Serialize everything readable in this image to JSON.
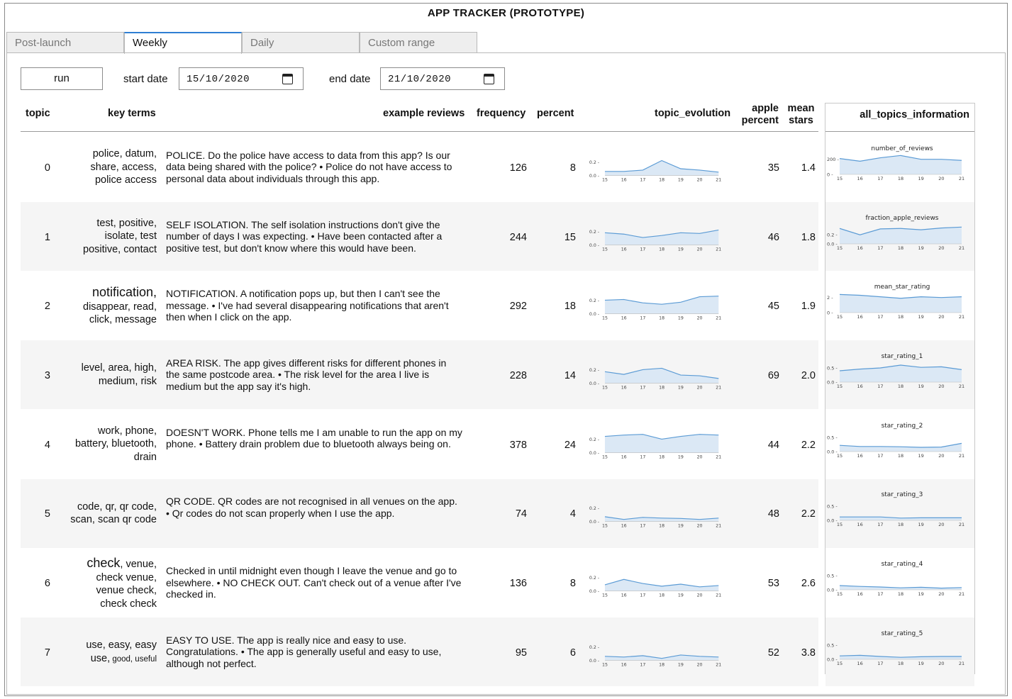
{
  "app": {
    "title": "APP TRACKER (PROTOTYPE)"
  },
  "tabs": [
    "Post-launch",
    "Weekly",
    "Daily",
    "Custom range"
  ],
  "active_tab": "Weekly",
  "controls": {
    "run_label": "run",
    "start_label": "start date",
    "start_value": "15/10/2020",
    "end_label": "end date",
    "end_value": "21/10/2020"
  },
  "headers": {
    "topic": "topic",
    "key_terms": "key terms",
    "example_reviews": "example reviews",
    "frequency": "frequency",
    "percent": "percent",
    "topic_evolution": "topic_evolution",
    "apple_percent_1": "apple",
    "apple_percent_2": "percent",
    "mean_stars_1": "mean",
    "mean_stars_2": "stars",
    "all_topics": "all_topics_information"
  },
  "x_ticks": [
    "15",
    "16",
    "17",
    "18",
    "19",
    "20",
    "21"
  ],
  "colors": {
    "line": "#5b9bd5",
    "fill": "#dbe8f5",
    "active_tab": "#2f7fd3"
  },
  "rows": [
    {
      "topic": "0",
      "terms": [
        {
          "t": "police, datum,"
        },
        {
          "t": "share, access,"
        },
        {
          "t": "police access"
        }
      ],
      "review": "POLICE. Do the police have access to data from this app? Is our data being shared with the police? • Police do not have access to personal data about individuals through this app.",
      "frequency": "126",
      "percent": "8",
      "apple_percent": "35",
      "mean_stars": "1.4",
      "evolution": {
        "ymax": 0.3,
        "yticks": [
          "0.2",
          "0.0"
        ],
        "values": [
          0.06,
          0.06,
          0.08,
          0.22,
          0.1,
          0.08,
          0.05
        ]
      }
    },
    {
      "topic": "1",
      "terms": [
        {
          "t": "test, positive,"
        },
        {
          "t": "isolate, test"
        },
        {
          "t": "positive, contact"
        }
      ],
      "review": "SELF ISOLATION. The self isolation instructions don't give the number of days I was expecting. • Have been contacted after a positive test, but don't know where this would have been.",
      "frequency": "244",
      "percent": "15",
      "apple_percent": "46",
      "mean_stars": "1.8",
      "evolution": {
        "ymax": 0.3,
        "yticks": [
          "0.2",
          "0.0"
        ],
        "values": [
          0.18,
          0.16,
          0.11,
          0.14,
          0.18,
          0.17,
          0.22
        ]
      }
    },
    {
      "topic": "2",
      "terms": [
        {
          "t": "notification,",
          "size": "big"
        },
        {
          "t": "disappear, read,"
        },
        {
          "t": "click, message"
        }
      ],
      "review": "NOTIFICATION. A notification pops up, but then I can't see the message. • I've had several disappearing notifications that aren't then when I click on the app.",
      "frequency": "292",
      "percent": "18",
      "apple_percent": "45",
      "mean_stars": "1.9",
      "evolution": {
        "ymax": 0.3,
        "yticks": [
          "0.2",
          "0.0"
        ],
        "values": [
          0.2,
          0.21,
          0.16,
          0.14,
          0.17,
          0.25,
          0.26
        ]
      }
    },
    {
      "topic": "3",
      "terms": [
        {
          "t": "level, area, high,"
        },
        {
          "t": "medium, risk"
        }
      ],
      "review": "AREA RISK. The app gives different risks for different phones in the same postcode area. • The risk level for the area I live is medium but the app say it's high.",
      "frequency": "228",
      "percent": "14",
      "apple_percent": "69",
      "mean_stars": "2.0",
      "evolution": {
        "ymax": 0.3,
        "yticks": [
          "0.2",
          "0.0"
        ],
        "values": [
          0.17,
          0.13,
          0.2,
          0.22,
          0.12,
          0.11,
          0.07
        ]
      }
    },
    {
      "topic": "4",
      "terms": [
        {
          "t": "work, phone,"
        },
        {
          "t": "battery, bluetooth,"
        },
        {
          "t": "drain"
        }
      ],
      "review": "DOESN'T WORK. Phone tells me I am unable to run the app on my phone. • Battery drain problem due to bluetooth always being on.",
      "frequency": "378",
      "percent": "24",
      "apple_percent": "44",
      "mean_stars": "2.2",
      "evolution": {
        "ymax": 0.3,
        "yticks": [
          "0.2",
          "0.0"
        ],
        "values": [
          0.24,
          0.26,
          0.27,
          0.2,
          0.24,
          0.27,
          0.26
        ]
      }
    },
    {
      "topic": "5",
      "terms": [
        {
          "t": "code, qr, qr code,"
        },
        {
          "t": "scan, scan qr code"
        }
      ],
      "review": "QR CODE. QR codes are not recognised in all venues on the app. • Qr codes do not scan properly when I use the app.",
      "frequency": "74",
      "percent": "4",
      "apple_percent": "48",
      "mean_stars": "2.2",
      "evolution": {
        "ymax": 0.3,
        "yticks": [
          "0.2",
          "0.0"
        ],
        "values": [
          0.07,
          0.03,
          0.06,
          0.05,
          0.045,
          0.03,
          0.05
        ]
      }
    },
    {
      "topic": "6",
      "terms": [
        {
          "t": "check",
          "size": "big",
          "rest": ", venue,"
        },
        {
          "t": "check venue,"
        },
        {
          "t": "venue check,"
        },
        {
          "t": "check check"
        }
      ],
      "review": "Checked in until midnight even though I leave the venue and go to elsewhere. • NO CHECK OUT. Can't check out of a venue after I've checked in.",
      "frequency": "136",
      "percent": "8",
      "apple_percent": "53",
      "mean_stars": "2.6",
      "evolution": {
        "ymax": 0.3,
        "yticks": [
          "0.2",
          "0.0"
        ],
        "values": [
          0.09,
          0.17,
          0.11,
          0.07,
          0.1,
          0.06,
          0.08
        ]
      }
    },
    {
      "topic": "7",
      "terms": [
        {
          "t": "use, easy, easy"
        },
        {
          "t": "use,",
          "rest_small": " good, useful"
        }
      ],
      "review": "EASY TO USE. The app is really nice and easy to use. Congratulations. • The app is generally useful and easy to use, although not perfect.",
      "frequency": "95",
      "percent": "6",
      "apple_percent": "52",
      "mean_stars": "3.8",
      "evolution": {
        "ymax": 0.3,
        "yticks": [
          "0.2",
          "0.0"
        ],
        "values": [
          0.06,
          0.05,
          0.07,
          0.03,
          0.08,
          0.06,
          0.05
        ]
      }
    }
  ],
  "summary_charts": [
    {
      "title": "number_of_reviews",
      "yticks": [
        "200",
        "0"
      ],
      "ymax": 300,
      "values": [
        210,
        175,
        220,
        250,
        200,
        200,
        185
      ]
    },
    {
      "title": "fraction_apple_reviews",
      "yticks": [
        "0.2",
        "0.0"
      ],
      "ymax": 0.5,
      "values": [
        0.34,
        0.2,
        0.33,
        0.34,
        0.31,
        0.35,
        0.37
      ]
    },
    {
      "title": "mean_star_rating",
      "yticks": [
        "2",
        "0"
      ],
      "ymax": 3,
      "values": [
        2.4,
        2.3,
        2.1,
        1.9,
        2.1,
        2.0,
        2.1
      ]
    },
    {
      "title": "star_rating_1",
      "yticks": [
        "0.5",
        "0.0"
      ],
      "ymax": 0.8,
      "values": [
        0.4,
        0.46,
        0.5,
        0.6,
        0.52,
        0.54,
        0.44
      ]
    },
    {
      "title": "star_rating_2",
      "yticks": [
        "0.5",
        "0.0"
      ],
      "ymax": 0.8,
      "values": [
        0.22,
        0.18,
        0.18,
        0.17,
        0.15,
        0.16,
        0.29
      ]
    },
    {
      "title": "star_rating_3",
      "yticks": [
        "0.5",
        "0.0"
      ],
      "ymax": 0.8,
      "values": [
        0.12,
        0.12,
        0.12,
        0.08,
        0.09,
        0.09,
        0.09
      ]
    },
    {
      "title": "star_rating_4",
      "yticks": [
        "0.5",
        "0.0"
      ],
      "ymax": 0.8,
      "values": [
        0.15,
        0.12,
        0.1,
        0.07,
        0.09,
        0.06,
        0.08
      ]
    },
    {
      "title": "star_rating_5",
      "yticks": [
        "0.5",
        "0.0"
      ],
      "ymax": 0.8,
      "values": [
        0.12,
        0.14,
        0.1,
        0.07,
        0.09,
        0.1,
        0.1
      ]
    }
  ]
}
